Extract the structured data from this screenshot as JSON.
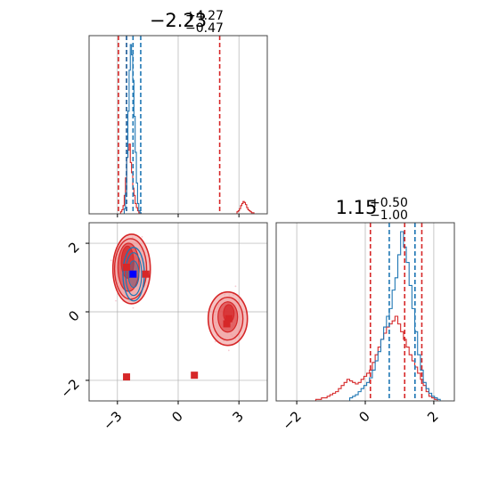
{
  "chart_data": {
    "type": "corner",
    "colors": {
      "red": "#d62728",
      "blue": "#1f77b4",
      "grid": "#b0b0b0",
      "red_fill": "#ef9a9a"
    },
    "parameters": [
      {
        "title_value": "−2.23",
        "title_plus": "+4.27",
        "title_minus": "−0.47",
        "range": [
          -4.4,
          4.4
        ],
        "ticks": [
          -3,
          0,
          3
        ],
        "tick_labels": [
          "−3",
          "0",
          "3"
        ],
        "quantiles_red": [
          -2.95,
          -2.55,
          2.05
        ],
        "quantiles_blue": [
          -2.55,
          -2.23,
          -1.85
        ]
      },
      {
        "title_value": "1.15",
        "title_plus": "+0.50",
        "title_minus": "−1.00",
        "range": [
          -2.6,
          2.6
        ],
        "ticks": [
          -2,
          0,
          2
        ],
        "tick_labels": [
          "−2",
          "0",
          "2"
        ],
        "quantiles_red": [
          0.15,
          1.15,
          1.65
        ],
        "quantiles_blue": [
          0.7,
          1.45,
          1.45
        ]
      }
    ],
    "scatter_y_ticks": [
      2,
      0,
      -2
    ],
    "scatter_y_tick_labels": [
      "2",
      "0",
      "−2"
    ],
    "red_markers": [
      {
        "x": -2.55,
        "y": 1.3
      },
      {
        "x": -1.6,
        "y": 1.1
      },
      {
        "x": 2.5,
        "y": -0.2
      },
      {
        "x": 2.4,
        "y": -0.35
      },
      {
        "x": -2.55,
        "y": -1.9
      },
      {
        "x": 0.8,
        "y": -1.85
      }
    ],
    "blue_marker": {
      "x": -2.23,
      "y": 1.1
    },
    "hist1_red": [
      0,
      0,
      0,
      0,
      0,
      0,
      0,
      0,
      0,
      0,
      0,
      0,
      0,
      0,
      0,
      0,
      0,
      0,
      0,
      0,
      0,
      0,
      0,
      0,
      0,
      0,
      2,
      4,
      8,
      18,
      35,
      55,
      62,
      68,
      50,
      40,
      25,
      18,
      10,
      6,
      3,
      1,
      0,
      0,
      0,
      0,
      0,
      0,
      0,
      0,
      0,
      0,
      0,
      0,
      0,
      0,
      0,
      0,
      0,
      0,
      0,
      0,
      0,
      0,
      0,
      0,
      0,
      0,
      0,
      0,
      0,
      0,
      0,
      0,
      0,
      0,
      0,
      0,
      0,
      0,
      0,
      0,
      0,
      0,
      0,
      0,
      0,
      0,
      0,
      0,
      0,
      0,
      0,
      0,
      0,
      0,
      0,
      0,
      0,
      0,
      0,
      0,
      0,
      0,
      0,
      0,
      0,
      0,
      0,
      0,
      0,
      0,
      0,
      0,
      0,
      0,
      0,
      0,
      0,
      0,
      0,
      0,
      2,
      3,
      5,
      8,
      10,
      12,
      11,
      9,
      6,
      4,
      3,
      2,
      1,
      1,
      0,
      0,
      0,
      0,
      0,
      0,
      0,
      0,
      0,
      0,
      0
    ],
    "hist1_blue": [
      0,
      0,
      0,
      0,
      0,
      0,
      0,
      0,
      0,
      0,
      0,
      0,
      0,
      0,
      0,
      0,
      0,
      0,
      0,
      0,
      0,
      0,
      0,
      0,
      0,
      0,
      0,
      0,
      0,
      5,
      20,
      55,
      100,
      140,
      165,
      155,
      130,
      95,
      60,
      30,
      10,
      3,
      1,
      0,
      0,
      0,
      0,
      0,
      0,
      0,
      0,
      0,
      0,
      0,
      0,
      0,
      0,
      0,
      0,
      0,
      0,
      0,
      0,
      0,
      0,
      0,
      0,
      0,
      0,
      0,
      0,
      0,
      0,
      0,
      0,
      0,
      0,
      0,
      0,
      0,
      0,
      0,
      0,
      0,
      0,
      0,
      0,
      0,
      0,
      0,
      0,
      0,
      0,
      0,
      0,
      0,
      0,
      0,
      0,
      0,
      0,
      0,
      0,
      0,
      0,
      0,
      0,
      0,
      0,
      0,
      0,
      0,
      0,
      0,
      0,
      0,
      0,
      0,
      0,
      0,
      0,
      0,
      0,
      0,
      0,
      0,
      0,
      0,
      0,
      0,
      0,
      0,
      0,
      0,
      0,
      0,
      0,
      0,
      0,
      0,
      0,
      0,
      0,
      0,
      0,
      0,
      0
    ],
    "hist2_red": [
      0,
      0,
      0,
      0,
      0,
      0,
      0,
      0,
      0,
      0,
      0,
      0,
      0,
      0,
      1,
      1,
      2,
      2,
      3,
      4,
      5,
      6,
      8,
      10,
      12,
      14,
      13,
      12,
      11,
      12,
      14,
      16,
      18,
      20,
      25,
      30,
      35,
      40,
      44,
      48,
      50,
      52,
      55,
      50,
      45,
      40,
      35,
      30,
      26,
      22,
      18,
      14,
      10,
      6,
      3,
      2,
      1,
      0,
      0,
      0,
      0,
      0,
      0
    ],
    "hist2_blue": [
      0,
      0,
      0,
      0,
      0,
      0,
      0,
      0,
      0,
      0,
      0,
      0,
      0,
      0,
      0,
      0,
      0,
      0,
      0,
      0,
      0,
      0,
      0,
      0,
      0,
      0,
      2,
      3,
      4,
      6,
      8,
      10,
      12,
      15,
      20,
      26,
      32,
      40,
      48,
      55,
      60,
      72,
      80,
      95,
      110,
      100,
      90,
      75,
      60,
      45,
      30,
      20,
      12,
      8,
      5,
      3,
      2,
      1,
      0,
      0,
      0,
      0,
      0
    ]
  }
}
